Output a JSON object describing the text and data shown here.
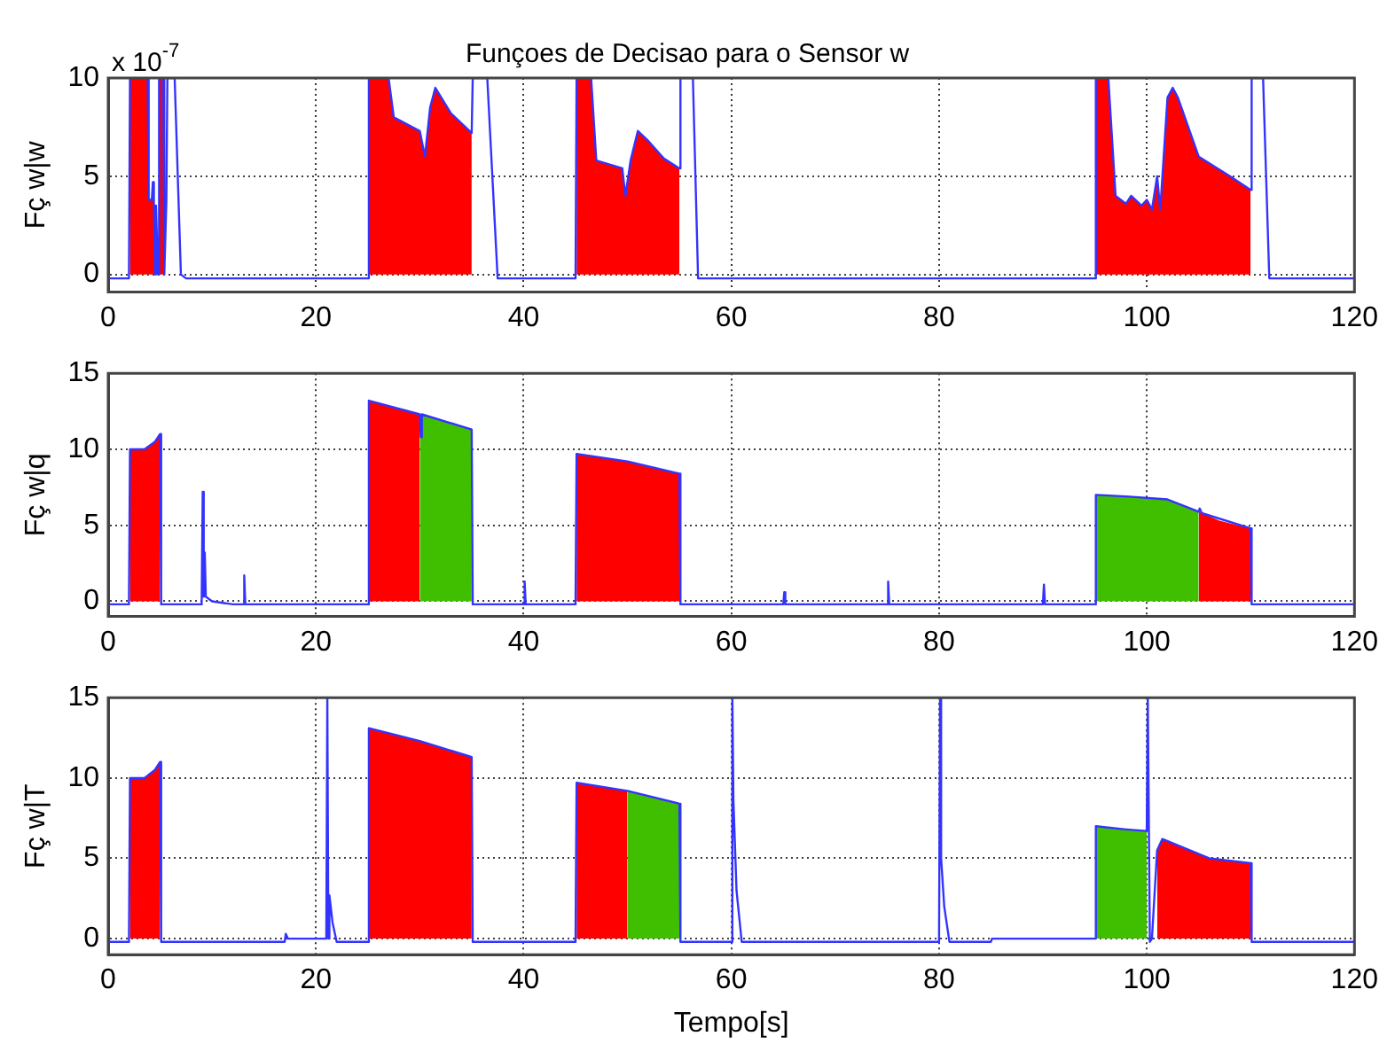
{
  "chart_data": [
    {
      "type": "line",
      "title": "Funçoes de Decisao para o Sensor w",
      "ylabel": "Fç w|w",
      "annotations": [
        "x 10$^{-7}$"
      ],
      "xlim": [
        0,
        120
      ],
      "xticks": [
        0,
        20,
        40,
        60,
        80,
        100,
        120
      ],
      "ylim": [
        -0.9,
        10
      ],
      "yticks": [
        0,
        5,
        10
      ],
      "grid": true,
      "legend": false,
      "marker": "none",
      "line_style": "solid",
      "series": [
        {
          "type": "area",
          "color": "#ff0000",
          "x": [
            2.1,
            3.8,
            3.9,
            4.2,
            4.3,
            4.4,
            4.5,
            4.6,
            4.8,
            4.9,
            5.3,
            5.35,
            25.1,
            27,
            27.5,
            30,
            30.5,
            31,
            31.5,
            33,
            35,
            35.05,
            45.1,
            46.5,
            47,
            49.5,
            49.8,
            50.3,
            51,
            52,
            53.5,
            55,
            55.05,
            95.1,
            96.3,
            97,
            98,
            98.5,
            99.5,
            100,
            100.5,
            101,
            101.3,
            102,
            102.5,
            103,
            105,
            108,
            110
          ],
          "values": [
            10,
            10,
            3.8,
            3.8,
            4.7,
            3.7,
            0,
            3.5,
            0,
            10,
            10,
            null,
            10,
            10,
            8,
            7.3,
            6,
            8.5,
            9.5,
            8.2,
            7.2,
            null,
            10,
            10,
            5.8,
            5.4,
            4,
            5.8,
            7.3,
            6.8,
            5.9,
            5.4,
            null,
            10,
            10,
            4,
            3.6,
            4,
            3.5,
            3.8,
            3.3,
            5,
            3.3,
            9,
            9.5,
            9,
            6,
            5,
            4.3
          ]
        },
        {
          "type": "line",
          "color": "#3333ff",
          "x": [
            0,
            2,
            2.1,
            3.8,
            3.9,
            4.2,
            4.3,
            4.4,
            4.5,
            4.6,
            4.8,
            4.9,
            5.3,
            5.4,
            5.6,
            5.7,
            6.4,
            7,
            7.5,
            25,
            25.1,
            27,
            27.5,
            30,
            30.5,
            31,
            31.5,
            33,
            35,
            35.1,
            36.5,
            37.5,
            45,
            45.1,
            46.5,
            47,
            49.5,
            49.8,
            50.3,
            51,
            52,
            53.5,
            55,
            55.1,
            56.3,
            56.8,
            95,
            95.1,
            96.3,
            97,
            98,
            98.5,
            99.5,
            100,
            100.5,
            101,
            101.3,
            102,
            102.5,
            103,
            105,
            108,
            110,
            110.1,
            111.2,
            111.8,
            120
          ],
          "values": [
            -0.2,
            -0.2,
            10,
            10,
            3.8,
            3.8,
            4.7,
            3.7,
            0,
            3.5,
            0,
            10,
            10,
            0,
            3.7,
            10,
            10,
            0,
            -0.2,
            -0.2,
            10,
            10,
            8,
            7.3,
            6,
            8.5,
            9.5,
            8.2,
            7.2,
            10,
            10,
            -0.2,
            -0.2,
            10,
            10,
            5.8,
            5.4,
            4,
            5.8,
            7.3,
            6.8,
            5.9,
            5.4,
            10,
            10,
            -0.2,
            -0.2,
            10,
            10,
            4,
            3.6,
            4,
            3.5,
            3.8,
            3.3,
            5,
            3.3,
            9,
            9.5,
            9,
            6,
            5,
            4.3,
            10,
            10,
            -0.2,
            -0.2
          ]
        }
      ]
    },
    {
      "type": "line",
      "ylabel": "Fç w|q",
      "xlim": [
        0,
        120
      ],
      "xticks": [
        0,
        20,
        40,
        60,
        80,
        100,
        120
      ],
      "ylim": [
        -1,
        15
      ],
      "yticks": [
        0,
        5,
        10,
        15
      ],
      "grid": true,
      "legend": false,
      "marker": "none",
      "line_style": "solid",
      "series": [
        {
          "type": "area",
          "color": "#ff0000",
          "x": [
            2.1,
            3.5,
            4.5,
            5,
            5.05,
            25.1,
            30,
            30.05,
            45.1,
            50,
            55,
            55.05,
            105,
            107,
            110
          ],
          "values": [
            10,
            10,
            10.5,
            11,
            null,
            13.2,
            12.3,
            null,
            9.7,
            9.2,
            8.4,
            null,
            5.9,
            5.3,
            4.8
          ]
        },
        {
          "type": "area",
          "color": "#40bf00",
          "x": [
            30,
            35,
            35.05,
            95.1,
            98,
            102,
            105
          ],
          "values": [
            12.3,
            11.3,
            null,
            7,
            6.9,
            6.7,
            5.9
          ]
        },
        {
          "type": "line",
          "color": "#3333ff",
          "x": [
            0,
            2,
            2.1,
            3.5,
            4.5,
            5,
            5.1,
            9,
            9.1,
            9.2,
            9.3,
            9.4,
            10,
            12,
            13,
            13.1,
            13.2,
            25,
            25.1,
            30,
            30.1,
            30.2,
            35,
            35.1,
            40,
            40.1,
            40.2,
            45,
            45.1,
            50,
            55,
            55.1,
            65,
            65.1,
            65.2,
            75,
            75.1,
            75.2,
            90,
            90.1,
            90.2,
            95,
            95.1,
            98,
            102,
            105,
            105.1,
            105.3,
            110,
            110.1,
            120
          ],
          "values": [
            -0.2,
            -0.2,
            10,
            10,
            10.5,
            11,
            -0.2,
            -0.2,
            7.2,
            0.3,
            3.2,
            0.3,
            0,
            -0.2,
            -0.2,
            1.7,
            -0.2,
            -0.2,
            13.2,
            12.3,
            10.8,
            12.3,
            11.3,
            -0.2,
            -0.2,
            1.3,
            -0.2,
            -0.2,
            9.7,
            9.2,
            8.4,
            -0.2,
            -0.2,
            0.6,
            -0.2,
            -0.2,
            1.3,
            -0.2,
            -0.2,
            1.1,
            -0.2,
            -0.2,
            7,
            6.9,
            6.7,
            5.9,
            6.1,
            5.8,
            4.8,
            -0.2,
            -0.2
          ]
        }
      ]
    },
    {
      "type": "line",
      "xlabel": "Tempo[s]",
      "ylabel": "Fç w|T",
      "xlim": [
        0,
        120
      ],
      "xticks": [
        0,
        20,
        40,
        60,
        80,
        100,
        120
      ],
      "ylim": [
        -1,
        15
      ],
      "yticks": [
        0,
        5,
        10,
        15
      ],
      "grid": true,
      "legend": false,
      "marker": "none",
      "line_style": "solid",
      "series": [
        {
          "type": "area",
          "color": "#ff0000",
          "x": [
            2.1,
            3.5,
            4.5,
            5,
            5.05,
            25.1,
            30,
            35,
            35.05,
            45.1,
            50,
            50.05,
            101,
            101.5,
            103,
            106,
            110
          ],
          "values": [
            10,
            10,
            10.5,
            11,
            null,
            13.1,
            12.3,
            11.3,
            null,
            9.7,
            9.2,
            null,
            5.5,
            6.2,
            5.8,
            5,
            4.7
          ]
        },
        {
          "type": "area",
          "color": "#40bf00",
          "x": [
            50,
            55,
            55.05,
            95.1,
            98,
            100
          ],
          "values": [
            9.2,
            8.4,
            null,
            7,
            6.8,
            6.7
          ]
        },
        {
          "type": "line",
          "color": "#3333ff",
          "x": [
            0,
            2,
            2.1,
            3.5,
            4.5,
            5,
            5.1,
            17,
            17.1,
            17.3,
            21,
            21.1,
            21.2,
            21.3,
            21.6,
            22,
            25,
            25.1,
            30,
            35,
            35.1,
            45,
            45.1,
            50,
            55,
            55.1,
            60,
            60.1,
            60.2,
            60.5,
            61,
            80,
            80.1,
            80.2,
            80.5,
            81,
            85,
            85.1,
            95,
            95.1,
            98,
            100,
            100.1,
            100.3,
            100.5,
            101,
            101.5,
            103,
            106,
            110,
            110.1,
            120
          ],
          "values": [
            -0.2,
            -0.2,
            10,
            10,
            10.5,
            11,
            -0.2,
            -0.2,
            0.3,
            0,
            0,
            15,
            0,
            2.7,
            1,
            -0.2,
            -0.2,
            13.1,
            12.3,
            11.3,
            -0.2,
            -0.2,
            9.7,
            9.2,
            8.4,
            -0.2,
            -0.2,
            15,
            8.6,
            3,
            -0.2,
            -0.2,
            15,
            5,
            2,
            -0.2,
            -0.2,
            0,
            0,
            7,
            6.8,
            6.7,
            15,
            -0.2,
            0,
            5.5,
            6.2,
            5.8,
            5,
            4.7,
            -0.2,
            -0.2
          ]
        }
      ]
    }
  ]
}
